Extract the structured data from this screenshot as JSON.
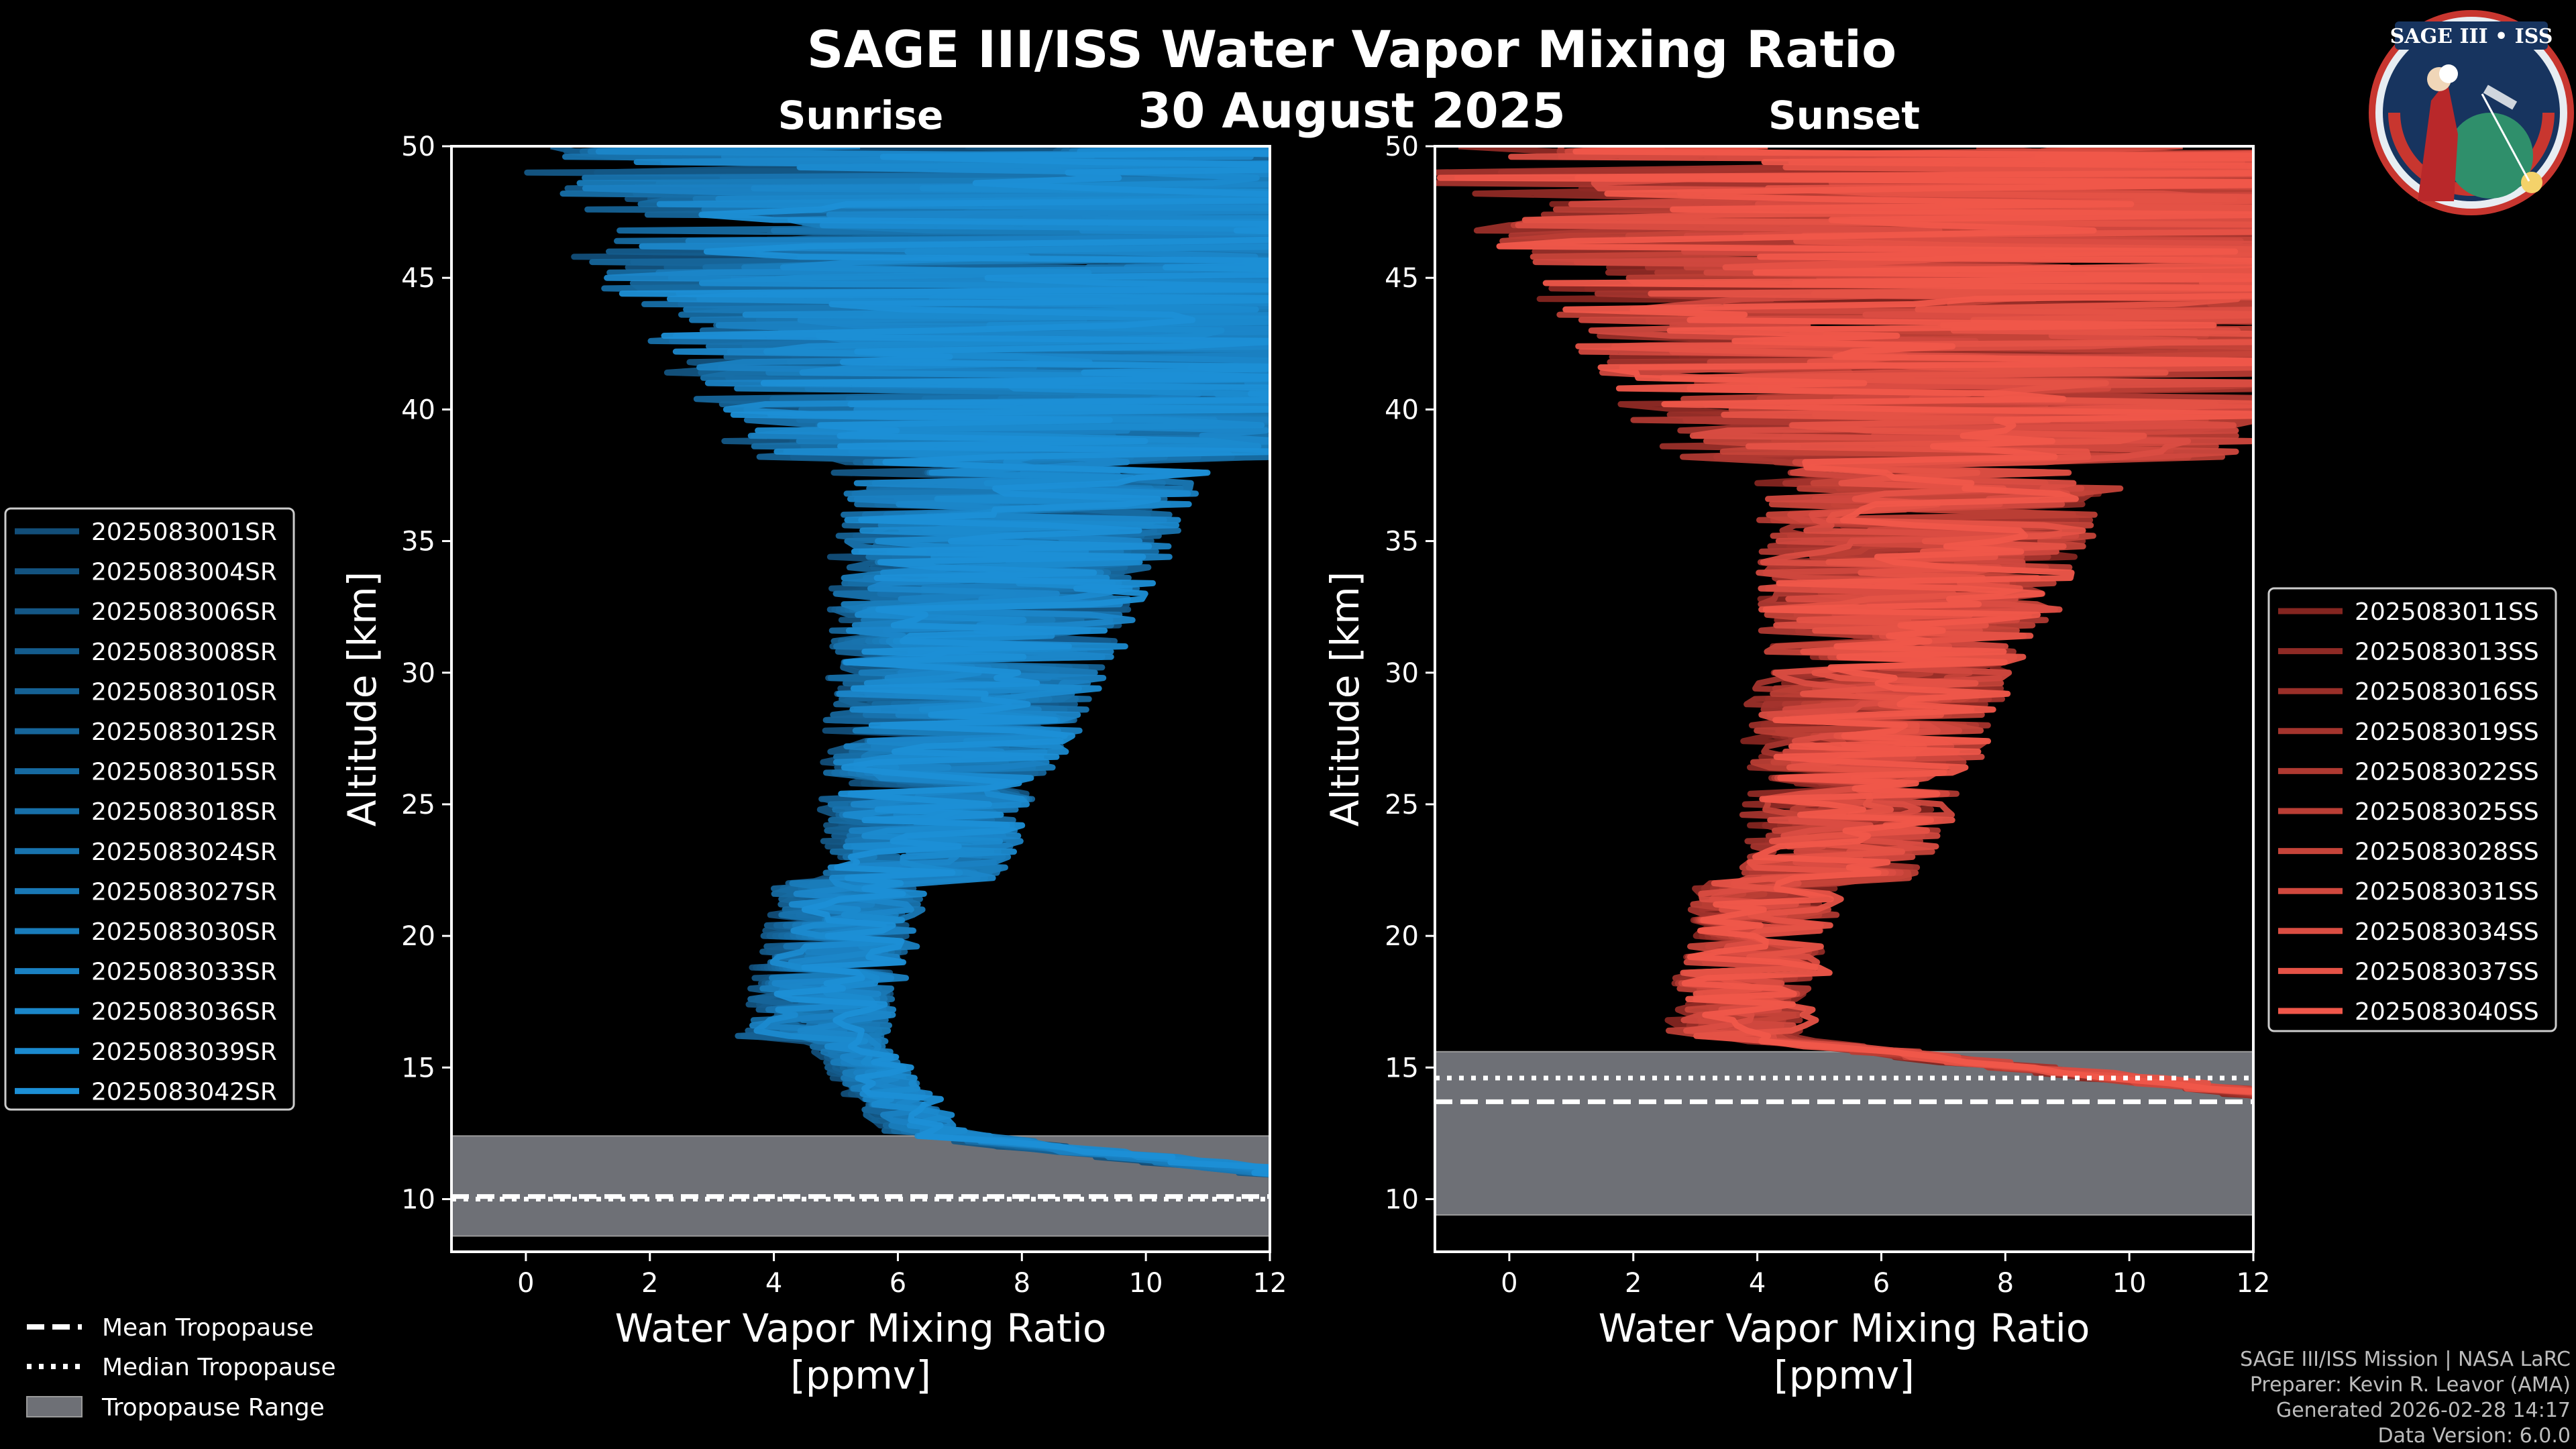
{
  "title": "SAGE III/ISS Water Vapor Mixing Ratio",
  "date": "30 August 2025",
  "colors": {
    "sunrise": "#1c8fd6",
    "sunset": "#f0574a",
    "tropopause_fill": "#6e7076",
    "background": "#000000"
  },
  "chart_data": [
    {
      "type": "line",
      "name": "Sunrise",
      "title": "Sunrise",
      "xlabel_line1": "Water Vapor Mixing Ratio",
      "xlabel_line2": "[ppmv]",
      "ylabel": "Altitude [km]",
      "xlim": [
        -1.2,
        12
      ],
      "ylim": [
        8,
        50
      ],
      "xticks": [
        0,
        2,
        4,
        6,
        8,
        10,
        12
      ],
      "yticks": [
        10,
        15,
        20,
        25,
        30,
        35,
        40,
        45,
        50
      ],
      "tropopause": {
        "range_km": [
          8.6,
          12.4
        ],
        "mean_km": 10.1,
        "median_km": 10.0
      },
      "series": [
        {
          "name": "2025083001SR"
        },
        {
          "name": "2025083004SR"
        },
        {
          "name": "2025083006SR"
        },
        {
          "name": "2025083008SR"
        },
        {
          "name": "2025083010SR"
        },
        {
          "name": "2025083012SR"
        },
        {
          "name": "2025083015SR"
        },
        {
          "name": "2025083018SR"
        },
        {
          "name": "2025083024SR"
        },
        {
          "name": "2025083027SR"
        },
        {
          "name": "2025083030SR"
        },
        {
          "name": "2025083033SR"
        },
        {
          "name": "2025083036SR"
        },
        {
          "name": "2025083039SR"
        },
        {
          "name": "2025083042SR"
        }
      ]
    },
    {
      "type": "line",
      "name": "Sunset",
      "title": "Sunset",
      "xlabel_line1": "Water Vapor Mixing Ratio",
      "xlabel_line2": "[ppmv]",
      "ylabel": "Altitude [km]",
      "xlim": [
        -1.2,
        12
      ],
      "ylim": [
        8,
        50
      ],
      "xticks": [
        0,
        2,
        4,
        6,
        8,
        10,
        12
      ],
      "yticks": [
        10,
        15,
        20,
        25,
        30,
        35,
        40,
        45,
        50
      ],
      "tropopause": {
        "range_km": [
          9.4,
          15.6
        ],
        "mean_km": 13.7,
        "median_km": 14.6
      },
      "series": [
        {
          "name": "2025083011SS"
        },
        {
          "name": "2025083013SS"
        },
        {
          "name": "2025083016SS"
        },
        {
          "name": "2025083019SS"
        },
        {
          "name": "2025083022SS"
        },
        {
          "name": "2025083025SS"
        },
        {
          "name": "2025083028SS"
        },
        {
          "name": "2025083031SS"
        },
        {
          "name": "2025083034SS"
        },
        {
          "name": "2025083037SS"
        },
        {
          "name": "2025083040SS"
        }
      ]
    }
  ],
  "tropopause_legend": {
    "mean": "Mean Tropopause",
    "median": "Median Tropopause",
    "range": "Tropopause Range"
  },
  "logo": {
    "title": "SAGE III • ISS"
  },
  "footer": {
    "line1": "SAGE III/ISS Mission | NASA LaRC",
    "line2": "Preparer: Kevin R. Leavor (AMA)",
    "line3": "Generated 2026-02-28 14:17",
    "line4": "Data Version: 6.0.0"
  }
}
